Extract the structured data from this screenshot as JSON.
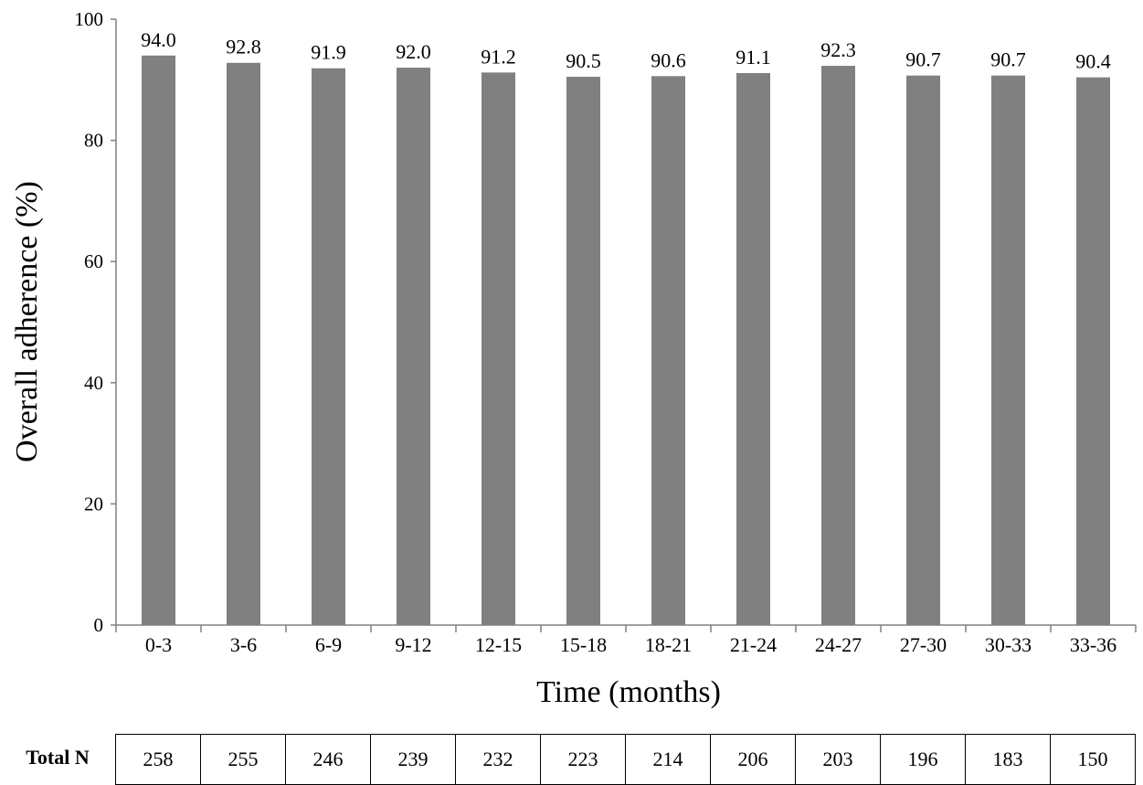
{
  "chart_data": {
    "type": "bar",
    "xlabel": "Time (months)",
    "ylabel": "Overall adherence (%)",
    "ylim": [
      0,
      100
    ],
    "yticks": [
      0,
      20,
      40,
      60,
      80,
      100
    ],
    "grid": false,
    "bar_color": "#808080",
    "categories": [
      "0-3",
      "3-6",
      "6-9",
      "9-12",
      "12-15",
      "15-18",
      "18-21",
      "21-24",
      "24-27",
      "27-30",
      "30-33",
      "33-36"
    ],
    "values": [
      94.0,
      92.8,
      91.9,
      92.0,
      91.2,
      90.5,
      90.6,
      91.1,
      92.3,
      90.7,
      90.7,
      90.4
    ],
    "data_labels": [
      "94.0",
      "92.8",
      "91.9",
      "92.0",
      "91.2",
      "90.5",
      "90.6",
      "91.1",
      "92.3",
      "90.7",
      "90.7",
      "90.4"
    ]
  },
  "table": {
    "row_label": "Total N",
    "values": [
      "258",
      "255",
      "246",
      "239",
      "232",
      "223",
      "214",
      "206",
      "203",
      "196",
      "183",
      "150"
    ]
  }
}
